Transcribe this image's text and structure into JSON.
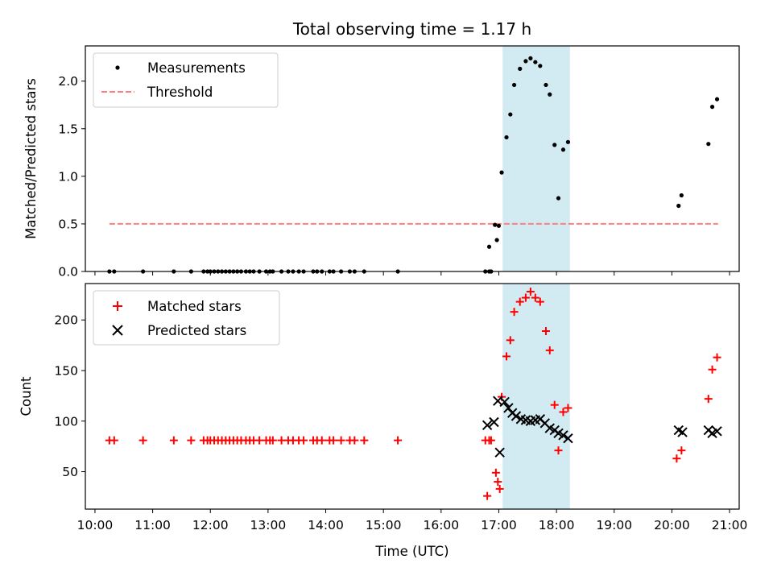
{
  "figure": {
    "title": "Total observing time = 1.17 h"
  },
  "colors": {
    "measurement": "#000000",
    "threshold": "#ff7f7f",
    "matched": "#ff0000",
    "predicted": "#000000",
    "span": "#add8e6"
  },
  "chart_data": [
    {
      "type": "scatter",
      "ylabel": "Matched/Predicted stars",
      "xlabel": "",
      "xlim": [
        "09:50",
        "21:10"
      ],
      "ylim": [
        0,
        2.37
      ],
      "yticks": [
        "0.0",
        "0.5",
        "1.0",
        "1.5",
        "2.0"
      ],
      "ytick_values": [
        0,
        0.5,
        1.0,
        1.5,
        2.0
      ],
      "grid": false,
      "legend_position": "upper-left",
      "highlight_span": [
        "17:04",
        "18:14"
      ],
      "series": [
        {
          "name": "Measurements",
          "type": "scatter",
          "points": [
            [
              "10:15",
              0
            ],
            [
              "10:20",
              0
            ],
            [
              "10:50",
              0
            ],
            [
              "11:22",
              0
            ],
            [
              "11:40",
              0
            ],
            [
              "11:53",
              0
            ],
            [
              "11:57",
              0
            ],
            [
              "12:00",
              0
            ],
            [
              "12:04",
              0
            ],
            [
              "12:08",
              0
            ],
            [
              "12:12",
              0
            ],
            [
              "12:16",
              0
            ],
            [
              "12:20",
              0
            ],
            [
              "12:24",
              0
            ],
            [
              "12:28",
              0
            ],
            [
              "12:32",
              0
            ],
            [
              "12:37",
              0
            ],
            [
              "12:41",
              0
            ],
            [
              "12:45",
              0
            ],
            [
              "12:51",
              0
            ],
            [
              "12:58",
              0
            ],
            [
              "13:02",
              0
            ],
            [
              "13:05",
              0
            ],
            [
              "13:14",
              0
            ],
            [
              "13:21",
              0
            ],
            [
              "13:26",
              0
            ],
            [
              "13:32",
              0
            ],
            [
              "13:37",
              0
            ],
            [
              "13:47",
              0
            ],
            [
              "13:51",
              0
            ],
            [
              "13:56",
              0
            ],
            [
              "14:04",
              0
            ],
            [
              "14:08",
              0
            ],
            [
              "14:16",
              0
            ],
            [
              "14:25",
              0
            ],
            [
              "14:30",
              0
            ],
            [
              "14:40",
              0
            ],
            [
              "15:15",
              0
            ],
            [
              "16:46",
              0
            ],
            [
              "16:50",
              0
            ],
            [
              "16:52",
              0
            ],
            [
              "16:50",
              0.26
            ],
            [
              "16:58",
              0.33
            ],
            [
              "16:56",
              0.49
            ],
            [
              "17:00",
              0.48
            ],
            [
              "17:03",
              1.04
            ],
            [
              "17:08",
              1.41
            ],
            [
              "17:12",
              1.65
            ],
            [
              "17:16",
              1.96
            ],
            [
              "17:22",
              2.13
            ],
            [
              "17:28",
              2.21
            ],
            [
              "17:33",
              2.24
            ],
            [
              "17:38",
              2.2
            ],
            [
              "17:43",
              2.16
            ],
            [
              "17:49",
              1.96
            ],
            [
              "17:53",
              1.86
            ],
            [
              "17:58",
              1.33
            ],
            [
              "18:02",
              0.77
            ],
            [
              "18:07",
              1.28
            ],
            [
              "18:12",
              1.36
            ],
            [
              "20:07",
              0.69
            ],
            [
              "20:10",
              0.8
            ],
            [
              "20:38",
              1.34
            ],
            [
              "20:42",
              1.73
            ],
            [
              "20:47",
              1.81
            ]
          ]
        },
        {
          "name": "Threshold",
          "type": "line",
          "points": [
            [
              "10:15",
              0.5
            ],
            [
              "20:48",
              0.5
            ]
          ]
        }
      ]
    },
    {
      "type": "scatter",
      "ylabel": "Count",
      "xlabel": "Time (UTC)",
      "xlim": [
        "09:50",
        "21:10"
      ],
      "ylim": [
        13,
        236
      ],
      "xticks": [
        "10:00",
        "11:00",
        "12:00",
        "13:00",
        "14:00",
        "15:00",
        "16:00",
        "17:00",
        "18:00",
        "19:00",
        "20:00",
        "21:00"
      ],
      "yticks": [
        "50",
        "100",
        "150",
        "200"
      ],
      "ytick_values": [
        50,
        100,
        150,
        200
      ],
      "grid": false,
      "legend_position": "upper-left",
      "highlight_span": [
        "17:04",
        "18:14"
      ],
      "series": [
        {
          "name": "Matched stars",
          "marker": "plus",
          "points": [
            [
              "10:15",
              81
            ],
            [
              "10:20",
              81
            ],
            [
              "10:50",
              81
            ],
            [
              "11:22",
              81
            ],
            [
              "11:40",
              81
            ],
            [
              "11:53",
              81
            ],
            [
              "11:57",
              81
            ],
            [
              "12:00",
              81
            ],
            [
              "12:04",
              81
            ],
            [
              "12:08",
              81
            ],
            [
              "12:12",
              81
            ],
            [
              "12:16",
              81
            ],
            [
              "12:20",
              81
            ],
            [
              "12:24",
              81
            ],
            [
              "12:28",
              81
            ],
            [
              "12:32",
              81
            ],
            [
              "12:37",
              81
            ],
            [
              "12:41",
              81
            ],
            [
              "12:45",
              81
            ],
            [
              "12:51",
              81
            ],
            [
              "12:58",
              81
            ],
            [
              "13:02",
              81
            ],
            [
              "13:05",
              81
            ],
            [
              "13:14",
              81
            ],
            [
              "13:21",
              81
            ],
            [
              "13:26",
              81
            ],
            [
              "13:32",
              81
            ],
            [
              "13:37",
              81
            ],
            [
              "13:47",
              81
            ],
            [
              "13:51",
              81
            ],
            [
              "13:56",
              81
            ],
            [
              "14:04",
              81
            ],
            [
              "14:08",
              81
            ],
            [
              "14:16",
              81
            ],
            [
              "14:25",
              81
            ],
            [
              "14:30",
              81
            ],
            [
              "14:40",
              81
            ],
            [
              "15:15",
              81
            ],
            [
              "16:46",
              81
            ],
            [
              "16:50",
              81
            ],
            [
              "16:52",
              81
            ],
            [
              "16:48",
              26
            ],
            [
              "16:57",
              49
            ],
            [
              "16:59",
              40
            ],
            [
              "17:01",
              33
            ],
            [
              "17:03",
              124
            ],
            [
              "17:08",
              164
            ],
            [
              "17:12",
              180
            ],
            [
              "17:16",
              208
            ],
            [
              "17:22",
              218
            ],
            [
              "17:28",
              222
            ],
            [
              "17:33",
              228
            ],
            [
              "17:38",
              222
            ],
            [
              "17:43",
              218
            ],
            [
              "17:49",
              189
            ],
            [
              "17:53",
              170
            ],
            [
              "17:58",
              116
            ],
            [
              "18:02",
              71
            ],
            [
              "18:07",
              109
            ],
            [
              "18:12",
              113
            ],
            [
              "20:05",
              63
            ],
            [
              "20:10",
              71
            ],
            [
              "20:38",
              122
            ],
            [
              "20:42",
              151
            ],
            [
              "20:47",
              163
            ]
          ]
        },
        {
          "name": "Predicted stars",
          "marker": "x",
          "points": [
            [
              "16:48",
              96
            ],
            [
              "16:55",
              99
            ],
            [
              "16:59",
              120
            ],
            [
              "17:01",
              69
            ],
            [
              "17:06",
              119
            ],
            [
              "17:10",
              113
            ],
            [
              "17:14",
              108
            ],
            [
              "17:18",
              105
            ],
            [
              "17:23",
              102
            ],
            [
              "17:28",
              101
            ],
            [
              "17:33",
              100
            ],
            [
              "17:38",
              101
            ],
            [
              "17:43",
              102
            ],
            [
              "17:48",
              98
            ],
            [
              "17:53",
              93
            ],
            [
              "17:58",
              91
            ],
            [
              "18:02",
              88
            ],
            [
              "18:07",
              86
            ],
            [
              "18:12",
              83
            ],
            [
              "20:07",
              91
            ],
            [
              "20:11",
              89
            ],
            [
              "20:38",
              91
            ],
            [
              "20:42",
              88
            ],
            [
              "20:47",
              90
            ]
          ]
        }
      ]
    }
  ]
}
